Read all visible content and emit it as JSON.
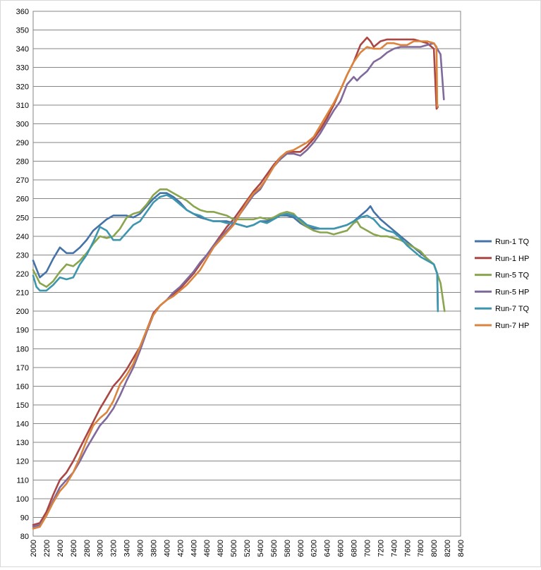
{
  "chart_data": {
    "type": "line",
    "title": "",
    "xlabel": "",
    "ylabel": "",
    "xlim": [
      2000,
      8400
    ],
    "ylim": [
      80,
      360
    ],
    "xticks": [
      2000,
      2200,
      2400,
      2600,
      2800,
      3000,
      3200,
      3400,
      3600,
      3800,
      4000,
      4200,
      4400,
      4600,
      4800,
      5000,
      5200,
      5400,
      5600,
      5800,
      6000,
      6200,
      6400,
      6600,
      6800,
      7000,
      7200,
      7400,
      7600,
      7800,
      8000,
      8200,
      8400
    ],
    "yticks": [
      80,
      90,
      100,
      110,
      120,
      130,
      140,
      150,
      160,
      170,
      180,
      190,
      200,
      210,
      220,
      230,
      240,
      250,
      260,
      270,
      280,
      290,
      300,
      310,
      320,
      330,
      340,
      350,
      360
    ],
    "grid": "horizontal",
    "legend": "right",
    "series": [
      {
        "name": "Run-1 TQ",
        "color": "#4572A7",
        "x": [
          2000,
          2100,
          2200,
          2300,
          2400,
          2500,
          2600,
          2700,
          2800,
          2900,
          3000,
          3100,
          3200,
          3300,
          3400,
          3500,
          3600,
          3700,
          3800,
          3900,
          4000,
          4100,
          4200,
          4300,
          4400,
          4500,
          4600,
          4700,
          4800,
          4900,
          5000,
          5100,
          5200,
          5300,
          5400,
          5500,
          5600,
          5700,
          5800,
          5900,
          6000,
          6100,
          6200,
          6300,
          6400,
          6500,
          6600,
          6700,
          6800,
          6900,
          7000,
          7050,
          7100,
          7200,
          7300,
          7400,
          7500,
          7600,
          7700,
          7800,
          7900,
          8000,
          8050,
          8060
        ],
        "y": [
          227,
          218,
          221,
          228,
          234,
          231,
          231,
          234,
          238,
          243,
          246,
          249,
          251,
          251,
          251,
          250,
          252,
          256,
          260,
          263,
          263,
          261,
          258,
          254,
          252,
          250,
          249,
          248,
          248,
          248,
          247,
          246,
          245,
          246,
          248,
          248,
          250,
          251,
          251,
          250,
          247,
          245,
          244,
          244,
          244,
          244,
          245,
          246,
          248,
          251,
          254,
          256,
          253,
          249,
          246,
          243,
          240,
          237,
          234,
          231,
          228,
          225,
          220,
          201
        ]
      },
      {
        "name": "Run-1 HP",
        "color": "#AA4643",
        "x": [
          2000,
          2100,
          2200,
          2300,
          2400,
          2500,
          2600,
          2700,
          2800,
          2900,
          3000,
          3100,
          3200,
          3300,
          3400,
          3500,
          3600,
          3700,
          3800,
          3900,
          4000,
          4100,
          4200,
          4300,
          4400,
          4500,
          4600,
          4700,
          4800,
          4900,
          5000,
          5100,
          5200,
          5300,
          5400,
          5500,
          5600,
          5700,
          5800,
          5900,
          6000,
          6100,
          6200,
          6300,
          6400,
          6500,
          6600,
          6700,
          6800,
          6900,
          7000,
          7050,
          7100,
          7200,
          7300,
          7400,
          7500,
          7600,
          7700,
          7800,
          7900,
          8000,
          8040,
          8060
        ],
        "y": [
          86,
          87,
          93,
          102,
          110,
          114,
          120,
          127,
          134,
          141,
          148,
          154,
          160,
          164,
          169,
          175,
          181,
          190,
          199,
          203,
          206,
          209,
          212,
          216,
          220,
          225,
          230,
          235,
          240,
          245,
          249,
          254,
          259,
          264,
          268,
          273,
          278,
          282,
          285,
          285,
          285,
          288,
          292,
          297,
          303,
          310,
          318,
          326,
          333,
          342,
          346,
          344,
          341,
          344,
          345,
          345,
          345,
          345,
          345,
          344,
          343,
          340,
          308,
          309
        ]
      },
      {
        "name": "Run-5 TQ",
        "color": "#89A54E",
        "x": [
          2000,
          2100,
          2200,
          2300,
          2400,
          2500,
          2600,
          2700,
          2800,
          2900,
          3000,
          3100,
          3200,
          3300,
          3400,
          3500,
          3600,
          3700,
          3800,
          3900,
          4000,
          4100,
          4200,
          4300,
          4400,
          4500,
          4600,
          4700,
          4800,
          4900,
          5000,
          5100,
          5200,
          5300,
          5400,
          5500,
          5600,
          5700,
          5800,
          5900,
          6000,
          6100,
          6200,
          6300,
          6400,
          6500,
          6600,
          6700,
          6800,
          6850,
          6900,
          7000,
          7100,
          7200,
          7300,
          7400,
          7500,
          7600,
          7700,
          7800,
          7900,
          8000,
          8100,
          8160
        ],
        "y": [
          222,
          215,
          213,
          216,
          221,
          225,
          224,
          227,
          231,
          236,
          240,
          239,
          240,
          244,
          250,
          252,
          253,
          257,
          262,
          265,
          265,
          263,
          261,
          259,
          256,
          254,
          253,
          253,
          252,
          251,
          249,
          249,
          249,
          249,
          250,
          249,
          250,
          252,
          253,
          252,
          248,
          245,
          243,
          242,
          242,
          241,
          242,
          243,
          247,
          248,
          245,
          243,
          241,
          240,
          240,
          239,
          238,
          236,
          234,
          232,
          228,
          225,
          215,
          200
        ]
      },
      {
        "name": "Run-5 HP",
        "color": "#80699B",
        "x": [
          2000,
          2100,
          2200,
          2300,
          2400,
          2500,
          2600,
          2700,
          2800,
          2900,
          3000,
          3100,
          3200,
          3300,
          3400,
          3500,
          3600,
          3700,
          3800,
          3900,
          4000,
          4100,
          4200,
          4300,
          4400,
          4500,
          4600,
          4700,
          4800,
          4900,
          5000,
          5100,
          5200,
          5300,
          5400,
          5500,
          5600,
          5700,
          5800,
          5900,
          6000,
          6100,
          6200,
          6300,
          6400,
          6500,
          6600,
          6700,
          6800,
          6850,
          6900,
          7000,
          7100,
          7200,
          7300,
          7400,
          7500,
          7600,
          7700,
          7800,
          7900,
          8000,
          8100,
          8150
        ],
        "y": [
          85,
          86,
          91,
          99,
          106,
          110,
          114,
          120,
          127,
          133,
          139,
          143,
          148,
          155,
          163,
          170,
          179,
          189,
          198,
          203,
          206,
          210,
          213,
          217,
          221,
          226,
          230,
          235,
          239,
          243,
          247,
          252,
          257,
          262,
          265,
          271,
          277,
          281,
          284,
          284,
          283,
          286,
          290,
          295,
          301,
          307,
          312,
          321,
          325,
          323,
          325,
          328,
          333,
          335,
          338,
          340,
          341,
          341,
          341,
          341,
          342,
          343,
          337,
          313
        ]
      },
      {
        "name": "Run-7 TQ",
        "color": "#3D96AE",
        "x": [
          2000,
          2050,
          2100,
          2200,
          2300,
          2400,
          2500,
          2600,
          2700,
          2800,
          2900,
          3000,
          3100,
          3200,
          3300,
          3400,
          3500,
          3600,
          3700,
          3800,
          3900,
          4000,
          4100,
          4200,
          4300,
          4400,
          4500,
          4600,
          4700,
          4800,
          4900,
          5000,
          5100,
          5200,
          5300,
          5400,
          5500,
          5600,
          5700,
          5800,
          5900,
          6000,
          6100,
          6200,
          6300,
          6400,
          6500,
          6600,
          6700,
          6800,
          6900,
          7000,
          7100,
          7200,
          7300,
          7400,
          7500,
          7600,
          7700,
          7800,
          7900,
          8000,
          8050,
          8060
        ],
        "y": [
          219,
          213,
          211,
          211,
          214,
          218,
          217,
          218,
          225,
          230,
          237,
          245,
          243,
          238,
          238,
          242,
          246,
          248,
          253,
          258,
          261,
          262,
          260,
          257,
          254,
          252,
          251,
          249,
          248,
          248,
          247,
          247,
          246,
          245,
          246,
          248,
          247,
          249,
          251,
          252,
          251,
          249,
          246,
          245,
          244,
          244,
          244,
          245,
          246,
          248,
          250,
          251,
          249,
          245,
          243,
          242,
          239,
          235,
          232,
          229,
          227,
          225,
          220,
          200
        ]
      },
      {
        "name": "Run-7 HP",
        "color": "#DB843D",
        "x": [
          2000,
          2100,
          2200,
          2300,
          2400,
          2500,
          2600,
          2700,
          2800,
          2900,
          3000,
          3100,
          3200,
          3300,
          3400,
          3500,
          3600,
          3700,
          3800,
          3900,
          4000,
          4100,
          4200,
          4300,
          4400,
          4500,
          4600,
          4700,
          4800,
          4900,
          5000,
          5100,
          5200,
          5300,
          5400,
          5500,
          5600,
          5700,
          5800,
          5900,
          6000,
          6100,
          6200,
          6300,
          6400,
          6500,
          6600,
          6700,
          6800,
          6900,
          7000,
          7100,
          7200,
          7300,
          7400,
          7500,
          7600,
          7700,
          7800,
          7900,
          8000,
          8040,
          8050
        ],
        "y": [
          84,
          85,
          91,
          98,
          104,
          108,
          114,
          122,
          131,
          139,
          143,
          146,
          152,
          161,
          166,
          172,
          181,
          190,
          198,
          203,
          206,
          208,
          211,
          214,
          218,
          222,
          228,
          234,
          238,
          242,
          246,
          252,
          258,
          263,
          266,
          271,
          277,
          282,
          285,
          286,
          288,
          290,
          293,
          299,
          305,
          311,
          318,
          326,
          333,
          338,
          341,
          340,
          340,
          343,
          343,
          342,
          342,
          344,
          344,
          344,
          343,
          341,
          309
        ]
      }
    ]
  }
}
